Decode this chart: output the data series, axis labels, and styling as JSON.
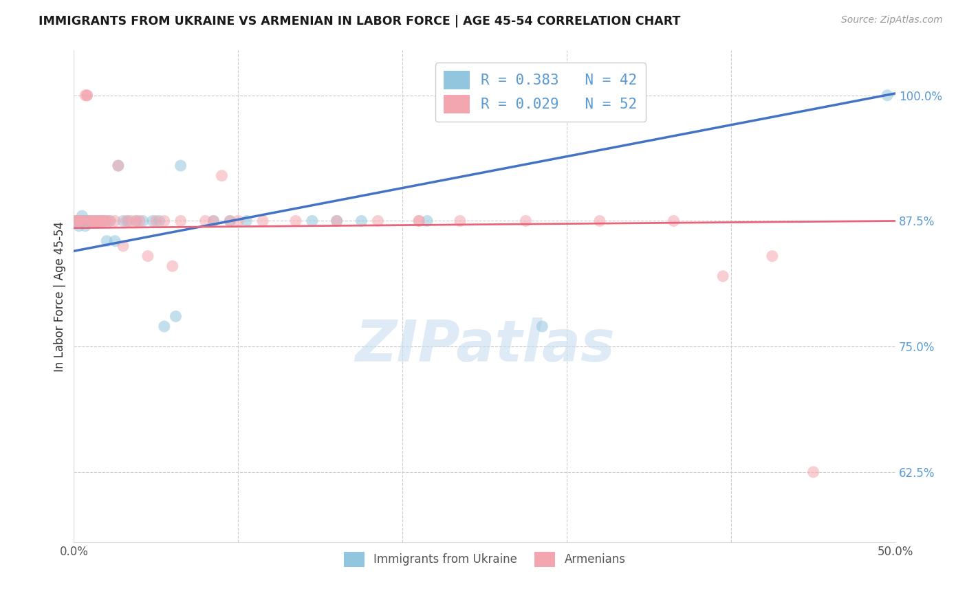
{
  "title": "IMMIGRANTS FROM UKRAINE VS ARMENIAN IN LABOR FORCE | AGE 45-54 CORRELATION CHART",
  "source": "Source: ZipAtlas.com",
  "ylabel": "In Labor Force | Age 45-54",
  "x_min": 0.0,
  "x_max": 0.5,
  "y_min": 0.555,
  "y_max": 1.045,
  "x_ticks": [
    0.0,
    0.1,
    0.2,
    0.3,
    0.4,
    0.5
  ],
  "x_tick_labels": [
    "0.0%",
    "",
    "",
    "",
    "",
    "50.0%"
  ],
  "y_ticks": [
    0.625,
    0.75,
    0.875,
    1.0
  ],
  "y_tick_labels": [
    "62.5%",
    "75.0%",
    "87.5%",
    "100.0%"
  ],
  "ukraine_R": 0.383,
  "ukraine_N": 42,
  "armenian_R": 0.029,
  "armenian_N": 52,
  "ukraine_color": "#92c5de",
  "armenian_color": "#f4a6b0",
  "ukraine_line_color": "#4472c4",
  "armenian_line_color": "#e8647a",
  "watermark_text": "ZIPatlas",
  "watermark_color": "#c8dff0",
  "legend_ukraine_label": "R = 0.383   N = 42",
  "legend_armenian_label": "R = 0.029   N = 52",
  "legend_bottom_ukraine": "Immigrants from Ukraine",
  "legend_bottom_armenian": "Armenians",
  "ukraine_line_x0": 0.0,
  "ukraine_line_y0": 0.845,
  "ukraine_line_x1": 0.5,
  "ukraine_line_y1": 1.002,
  "armenian_line_x0": 0.0,
  "armenian_line_y0": 0.868,
  "armenian_line_x1": 0.5,
  "armenian_line_y1": 0.875,
  "ukraine_x": [
    0.001,
    0.002,
    0.003,
    0.004,
    0.005,
    0.006,
    0.006,
    0.007,
    0.008,
    0.009,
    0.009,
    0.01,
    0.011,
    0.012,
    0.013,
    0.014,
    0.015,
    0.016,
    0.017,
    0.019,
    0.02,
    0.022,
    0.025,
    0.027,
    0.03,
    0.033,
    0.038,
    0.042,
    0.048,
    0.052,
    0.055,
    0.062,
    0.065,
    0.085,
    0.095,
    0.105,
    0.145,
    0.16,
    0.175,
    0.215,
    0.285,
    0.495
  ],
  "ukraine_y": [
    0.875,
    0.875,
    0.87,
    0.875,
    0.88,
    0.875,
    0.875,
    0.87,
    0.875,
    0.875,
    0.875,
    0.875,
    0.875,
    0.875,
    0.875,
    0.875,
    0.875,
    0.875,
    0.875,
    0.875,
    0.855,
    0.875,
    0.855,
    0.93,
    0.875,
    0.875,
    0.875,
    0.875,
    0.875,
    0.875,
    0.77,
    0.78,
    0.93,
    0.875,
    0.875,
    0.875,
    0.875,
    0.875,
    0.875,
    0.875,
    0.77,
    1.0
  ],
  "armenian_x": [
    0.001,
    0.002,
    0.003,
    0.004,
    0.005,
    0.006,
    0.007,
    0.008,
    0.008,
    0.009,
    0.01,
    0.011,
    0.012,
    0.013,
    0.014,
    0.015,
    0.016,
    0.017,
    0.018,
    0.019,
    0.02,
    0.022,
    0.025,
    0.027,
    0.03,
    0.032,
    0.035,
    0.038,
    0.04,
    0.045,
    0.05,
    0.055,
    0.06,
    0.065,
    0.08,
    0.085,
    0.09,
    0.095,
    0.1,
    0.115,
    0.135,
    0.16,
    0.185,
    0.21,
    0.235,
    0.275,
    0.32,
    0.365,
    0.395,
    0.425,
    0.45,
    0.21
  ],
  "armenian_y": [
    0.875,
    0.875,
    0.875,
    0.875,
    0.875,
    0.875,
    1.0,
    1.0,
    1.0,
    0.875,
    0.875,
    0.875,
    0.875,
    0.875,
    0.875,
    0.875,
    0.875,
    0.875,
    0.875,
    0.875,
    0.875,
    0.875,
    0.875,
    0.93,
    0.85,
    0.875,
    0.875,
    0.875,
    0.875,
    0.84,
    0.875,
    0.875,
    0.83,
    0.875,
    0.875,
    0.875,
    0.92,
    0.875,
    0.875,
    0.875,
    0.875,
    0.875,
    0.875,
    0.875,
    0.875,
    0.875,
    0.875,
    0.875,
    0.82,
    0.84,
    0.625,
    0.875
  ]
}
